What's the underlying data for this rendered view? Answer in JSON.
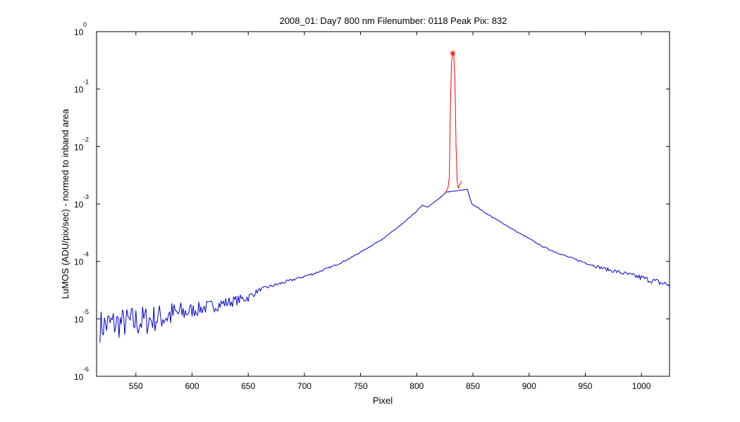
{
  "chart_data": {
    "type": "line",
    "title": "2008_01: Day7  800 nm  Filenumber: 0118 Peak Pix: 832",
    "xlabel": "Pixel",
    "ylabel": "LuMOS (ADU/pix/sec) - normed to inband area",
    "xlim": [
      515,
      1025
    ],
    "ylim": [
      1e-06,
      1
    ],
    "yscale": "log",
    "grid": false,
    "x_ticks": [
      550,
      600,
      650,
      700,
      750,
      800,
      850,
      900,
      950,
      1000
    ],
    "y_ticks": [
      {
        "base": "10",
        "exponent": "0",
        "value": 1
      },
      {
        "base": "10",
        "exponent": "-1",
        "value": 0.1
      },
      {
        "base": "10",
        "exponent": "-2",
        "value": 0.01
      },
      {
        "base": "10",
        "exponent": "-3",
        "value": 0.001
      },
      {
        "base": "10",
        "exponent": "-4",
        "value": 0.0001
      },
      {
        "base": "10",
        "exponent": "-5",
        "value": 1e-05
      },
      {
        "base": "10",
        "exponent": "-6",
        "value": 1e-06
      }
    ],
    "series": [
      {
        "color": "#0000cc",
        "x": [
          518,
          530,
          540,
          550,
          560,
          570,
          580,
          590,
          600,
          610,
          620,
          630,
          640,
          650,
          660,
          670,
          680,
          690,
          700,
          710,
          720,
          730,
          740,
          750,
          760,
          770,
          780,
          790,
          800,
          805,
          810,
          815,
          820,
          826,
          845,
          849,
          855,
          860,
          870,
          880,
          890,
          900,
          910,
          920,
          930,
          940,
          950,
          960,
          970,
          980,
          990,
          1000,
          1010,
          1020,
          1025
        ],
        "y": [
          7.5e-06,
          8.2e-06,
          8.5e-06,
          8.8e-06,
          9.5e-06,
          1.05e-05,
          1.15e-05,
          1.25e-05,
          1.4e-05,
          1.55e-05,
          1.7e-05,
          1.9e-05,
          2.1e-05,
          2.35e-05,
          3.2e-05,
          3.7e-05,
          4.2e-05,
          4.8e-05,
          5.5e-05,
          6.3e-05,
          7.5e-05,
          9e-05,
          0.000112,
          0.000145,
          0.00019,
          0.00025,
          0.00035,
          0.0005,
          0.00075,
          0.00095,
          0.00088,
          0.00105,
          0.00125,
          0.0016,
          0.0018,
          0.001,
          0.00085,
          0.00072,
          0.00055,
          0.00042,
          0.00032,
          0.00025,
          0.00019,
          0.000155,
          0.00013,
          0.00011,
          9.5e-05,
          8.2e-05,
          7.2e-05,
          6.5e-05,
          5.8e-05,
          5.2e-05,
          4.6e-05,
          4.1e-05,
          3.9e-05
        ],
        "noise_db": [
          0.29,
          0.29,
          0.27,
          0.3,
          0.27,
          0.24,
          0.26,
          0.21,
          0.13,
          0.12,
          0.11,
          0.1,
          0.09,
          0.08,
          0.03,
          0.03,
          0.03,
          0.02,
          0.02,
          0.02,
          0.015,
          0.012,
          0.01,
          0.01,
          0.008,
          0.008,
          0.006,
          0.006,
          0.005,
          0.004,
          0.004,
          0.004,
          0.004,
          0.004,
          0.004,
          0.004,
          0.006,
          0.006,
          0.006,
          0.006,
          0.008,
          0.008,
          0.01,
          0.012,
          0.012,
          0.015,
          0.02,
          0.025,
          0.03,
          0.035,
          0.04,
          0.05,
          0.05,
          0.06,
          0.06
        ]
      },
      {
        "color": "#ff0000",
        "x": [
          826,
          828,
          829,
          830,
          831,
          832,
          833,
          834,
          835,
          836,
          837,
          838,
          839,
          840
        ],
        "y": [
          0.0016,
          0.002,
          0.003,
          0.05,
          0.3,
          0.42,
          0.38,
          0.15,
          0.01,
          0.0025,
          0.0019,
          0.0021,
          0.0023,
          0.0025
        ]
      }
    ],
    "marker": {
      "x": 832,
      "y": 0.42,
      "symbol": "*",
      "color": "#ff0000"
    }
  }
}
